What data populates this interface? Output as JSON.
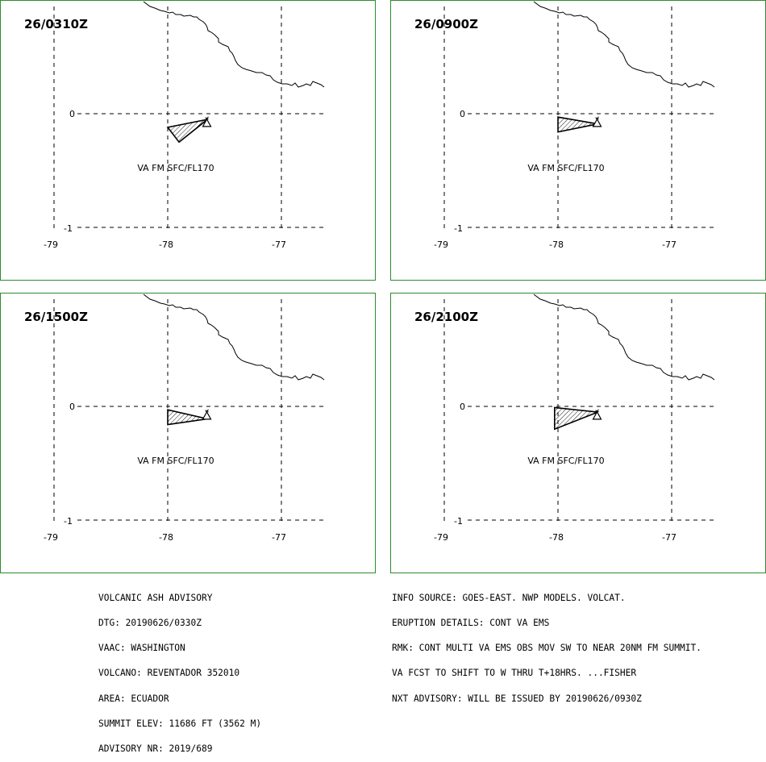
{
  "panels": [
    {
      "time": "26/0310Z",
      "caption": "VA FM SFC/FL170",
      "ash_polygon": [
        [
          -78.0,
          -0.12
        ],
        [
          -77.65,
          -0.05
        ],
        [
          -77.9,
          -0.25
        ]
      ]
    },
    {
      "time": "26/0900Z",
      "caption": "VA FM SFC/FL170",
      "ash_polygon": [
        [
          -78.0,
          -0.03
        ],
        [
          -77.65,
          -0.09
        ],
        [
          -78.0,
          -0.16
        ]
      ]
    },
    {
      "time": "26/1500Z",
      "caption": "VA FM SFC/FL170",
      "ash_polygon": [
        [
          -78.0,
          -0.03
        ],
        [
          -77.65,
          -0.11
        ],
        [
          -78.0,
          -0.16
        ]
      ]
    },
    {
      "time": "26/2100Z",
      "caption": "VA FM SFC/FL170",
      "ash_polygon": [
        [
          -78.03,
          -0.01
        ],
        [
          -77.65,
          -0.05
        ],
        [
          -78.03,
          -0.2
        ]
      ]
    }
  ],
  "map": {
    "lon_range": [
      -79.0,
      -76.6
    ],
    "lat_range": [
      -1.0,
      0.4
    ],
    "lon_ticks": [
      "-79",
      "-78",
      "-77"
    ],
    "lat_ticks": [
      "0",
      "-1"
    ],
    "volcano": {
      "lon": -77.656,
      "lat": -0.077
    },
    "border_color": "#2e8b2e"
  },
  "advisory_left": [
    "VOLCANIC ASH ADVISORY",
    "DTG: 20190626/0330Z",
    "VAAC: WASHINGTON",
    "VOLCANO: REVENTADOR 352010",
    "AREA: ECUADOR",
    "SUMMIT ELEV: 11686 FT (3562 M)",
    "ADVISORY NR: 2019/689"
  ],
  "advisory_right": [
    "INFO SOURCE: GOES-EAST. NWP MODELS. VOLCAT.",
    "ERUPTION DETAILS: CONT VA EMS",
    "RMK: CONT MULTI VA EMS OBS MOV SW TO NEAR 20NM FM SUMMIT.",
    "VA FCST TO SHIFT TO W THRU T+18HRS. ...FISHER",
    "NXT ADVISORY: WILL BE ISSUED BY 20190626/0930Z"
  ]
}
